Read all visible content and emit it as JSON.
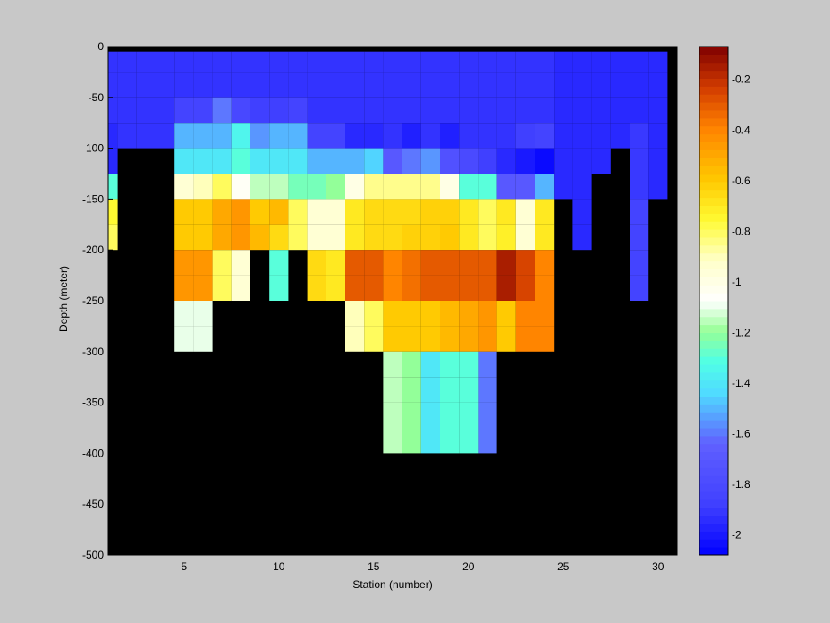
{
  "chart_data": {
    "type": "heatmap",
    "title": "",
    "xlabel": "Station (number)",
    "ylabel": "Depth (meter)",
    "xlim": [
      1,
      31
    ],
    "ylim": [
      -500,
      0
    ],
    "xticks": [
      5,
      10,
      15,
      20,
      25,
      30
    ],
    "yticks": [
      0,
      -50,
      -100,
      -150,
      -200,
      -250,
      -300,
      -350,
      -400,
      -450,
      -500
    ],
    "background": "#000000",
    "colormap": "jet",
    "colorbar": {
      "clim": [
        -2.08,
        -0.07
      ],
      "ticks": [
        -0.2,
        -0.4,
        -0.6,
        -0.8,
        -1,
        -1.2,
        -1.4,
        -1.6,
        -1.8,
        -2
      ],
      "position": "right"
    },
    "cell_width_stations": 1,
    "cell_height_m": 25,
    "stations": [
      1,
      2,
      3,
      4,
      5,
      6,
      7,
      8,
      9,
      10,
      11,
      12,
      13,
      14,
      15,
      16,
      17,
      18,
      19,
      20,
      21,
      22,
      23,
      24,
      25,
      26,
      27,
      28,
      29,
      30
    ],
    "depth_bins_top": [
      -5,
      -25,
      -50,
      -75,
      -100,
      -125,
      -150,
      -175,
      -200,
      -225,
      -250,
      -275,
      -300,
      -325,
      -350,
      -375
    ],
    "values": [
      [
        -1.92,
        -1.92,
        -1.92,
        -1.92,
        -1.92,
        -1.92,
        -1.92,
        -1.92,
        -1.92,
        -1.92,
        -1.92,
        -1.92,
        -1.92,
        -1.92,
        -1.92,
        -1.92,
        -1.92,
        -1.92,
        -1.92,
        -1.92,
        -1.92,
        -1.92,
        -1.92,
        -1.92,
        -1.95,
        -1.95,
        -1.95,
        -1.95,
        -1.95,
        -1.95
      ],
      [
        -1.92,
        -1.92,
        -1.92,
        -1.92,
        -1.92,
        -1.92,
        -1.92,
        -1.92,
        -1.92,
        -1.92,
        -1.92,
        -1.92,
        -1.92,
        -1.92,
        -1.92,
        -1.92,
        -1.92,
        -1.92,
        -1.92,
        -1.92,
        -1.92,
        -1.92,
        -1.92,
        -1.92,
        -1.95,
        -1.95,
        -1.95,
        -1.95,
        -1.95,
        -1.95
      ],
      [
        -1.92,
        -1.92,
        -1.92,
        -1.92,
        -1.85,
        -1.85,
        -1.6,
        -1.82,
        -1.88,
        -1.88,
        -1.85,
        -1.92,
        -1.92,
        -1.92,
        -1.92,
        -1.92,
        -1.92,
        -1.92,
        -1.92,
        -1.92,
        -1.92,
        -1.92,
        -1.92,
        -1.92,
        -1.95,
        -1.95,
        -1.95,
        -1.95,
        -1.95,
        -1.95
      ],
      [
        -1.95,
        -1.92,
        -1.92,
        -1.92,
        -1.5,
        -1.5,
        -1.5,
        -1.35,
        -1.55,
        -1.5,
        -1.5,
        -1.85,
        -1.85,
        -1.95,
        -1.95,
        -1.92,
        -1.98,
        -1.92,
        -1.98,
        -1.92,
        -1.92,
        -1.92,
        -1.88,
        -1.85,
        -1.95,
        -1.95,
        -1.95,
        -1.95,
        -1.9,
        -1.95
      ],
      [
        -1.95,
        null,
        null,
        null,
        -1.4,
        -1.4,
        -1.4,
        -1.3,
        -1.4,
        -1.4,
        -1.4,
        -1.5,
        -1.5,
        -1.5,
        -1.45,
        -1.7,
        -1.6,
        -1.55,
        -1.75,
        -1.8,
        -1.88,
        -1.95,
        -2.0,
        -2.05,
        -1.95,
        -1.95,
        -1.95,
        null,
        -1.9,
        -1.95
      ],
      [
        -1.3,
        null,
        null,
        null,
        -0.95,
        -0.9,
        -0.8,
        -1.05,
        -1.15,
        -1.15,
        -1.25,
        -1.25,
        -1.2,
        -1.0,
        -0.85,
        -0.85,
        -0.85,
        -0.85,
        -1.0,
        -1.3,
        -1.3,
        -1.7,
        -1.7,
        -1.5,
        -1.95,
        -1.95,
        null,
        null,
        -1.9,
        -1.95
      ],
      [
        -0.75,
        null,
        null,
        null,
        -0.6,
        -0.6,
        -0.5,
        -0.45,
        -0.6,
        -0.55,
        -0.8,
        -0.95,
        -0.95,
        -0.7,
        -0.65,
        -0.65,
        -0.65,
        -0.62,
        -0.62,
        -0.7,
        -0.8,
        -0.7,
        -0.95,
        -0.7,
        null,
        -1.95,
        null,
        null,
        -1.85,
        null
      ],
      [
        -0.8,
        null,
        null,
        null,
        -0.6,
        -0.6,
        -0.5,
        -0.45,
        -0.55,
        -0.65,
        -0.8,
        -0.95,
        -0.95,
        -0.7,
        -0.65,
        -0.65,
        -0.62,
        -0.62,
        -0.6,
        -0.7,
        -0.8,
        -0.72,
        -0.95,
        -0.7,
        null,
        -1.95,
        null,
        null,
        -1.85,
        null
      ],
      [
        null,
        null,
        null,
        null,
        -0.45,
        -0.45,
        -0.8,
        -0.95,
        null,
        -1.3,
        null,
        -0.65,
        -0.7,
        -0.3,
        -0.3,
        -0.4,
        -0.35,
        -0.3,
        -0.3,
        -0.3,
        -0.3,
        -0.15,
        -0.25,
        -0.4,
        null,
        null,
        null,
        null,
        -1.85,
        null
      ],
      [
        null,
        null,
        null,
        null,
        -0.45,
        -0.45,
        -0.8,
        -0.95,
        null,
        -1.3,
        null,
        -0.65,
        -0.7,
        -0.3,
        -0.3,
        -0.4,
        -0.35,
        -0.3,
        -0.3,
        -0.3,
        -0.3,
        -0.15,
        -0.25,
        -0.4,
        null,
        null,
        null,
        null,
        -1.85,
        null
      ],
      [
        null,
        null,
        null,
        null,
        -1.1,
        -1.1,
        null,
        null,
        null,
        null,
        null,
        null,
        null,
        -0.9,
        -0.8,
        -0.6,
        -0.6,
        -0.6,
        -0.55,
        -0.5,
        -0.45,
        -0.6,
        -0.4,
        -0.4,
        null,
        null,
        null,
        null,
        null,
        null
      ],
      [
        null,
        null,
        null,
        null,
        -1.1,
        -1.1,
        null,
        null,
        null,
        null,
        null,
        null,
        null,
        -0.9,
        -0.8,
        -0.6,
        -0.6,
        -0.6,
        -0.55,
        -0.5,
        -0.45,
        -0.6,
        -0.4,
        -0.4,
        null,
        null,
        null,
        null,
        null,
        null
      ],
      [
        null,
        null,
        null,
        null,
        null,
        null,
        null,
        null,
        null,
        null,
        null,
        null,
        null,
        null,
        null,
        -1.15,
        -1.2,
        -1.4,
        -1.3,
        -1.3,
        -1.6,
        null,
        null,
        null,
        null,
        null,
        null,
        null,
        null,
        null
      ],
      [
        null,
        null,
        null,
        null,
        null,
        null,
        null,
        null,
        null,
        null,
        null,
        null,
        null,
        null,
        null,
        -1.15,
        -1.2,
        -1.4,
        -1.3,
        -1.3,
        -1.6,
        null,
        null,
        null,
        null,
        null,
        null,
        null,
        null,
        null
      ],
      [
        null,
        null,
        null,
        null,
        null,
        null,
        null,
        null,
        null,
        null,
        null,
        null,
        null,
        null,
        null,
        -1.15,
        -1.2,
        -1.4,
        -1.3,
        -1.3,
        -1.6,
        null,
        null,
        null,
        null,
        null,
        null,
        null,
        null,
        null
      ],
      [
        null,
        null,
        null,
        null,
        null,
        null,
        null,
        null,
        null,
        null,
        null,
        null,
        null,
        null,
        null,
        -1.15,
        -1.2,
        -1.4,
        -1.3,
        -1.3,
        -1.6,
        null,
        null,
        null,
        null,
        null,
        null,
        null,
        null,
        null
      ]
    ]
  }
}
